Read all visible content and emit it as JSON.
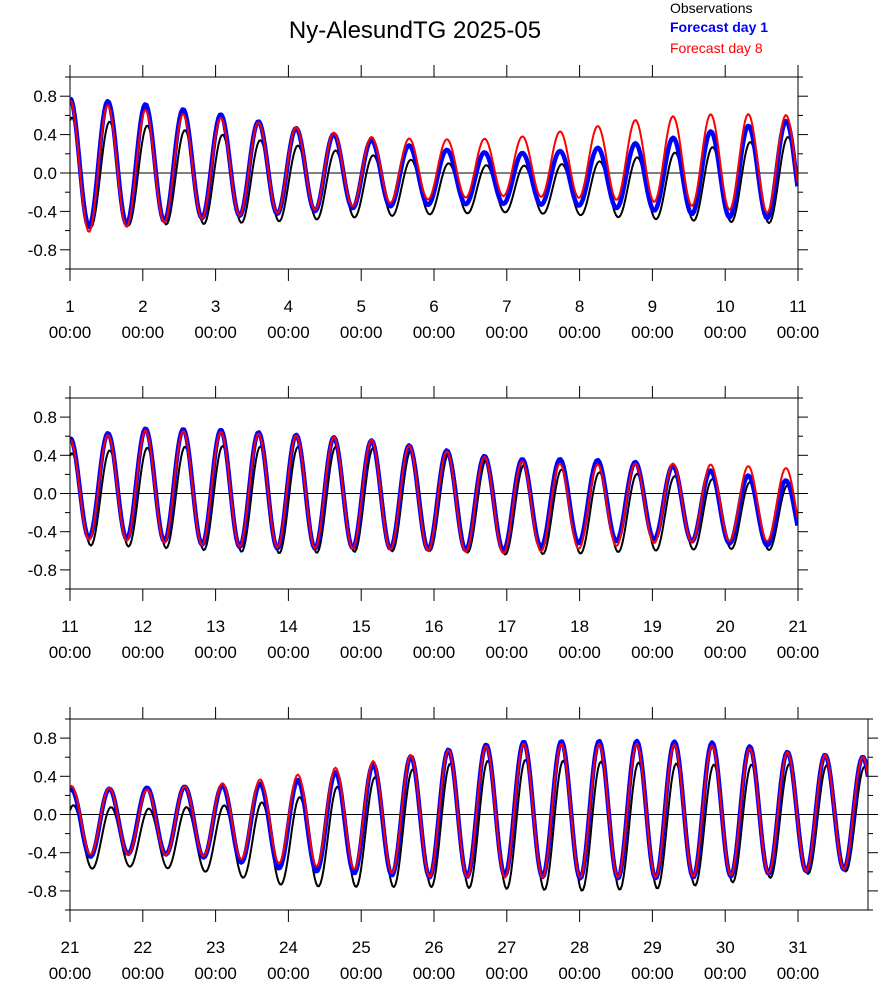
{
  "title": "Ny-AlesundTG 2025-05",
  "legend": {
    "observations": "Observations",
    "forecast_day_1": "Forecast day 1",
    "forecast_day_8": "Forecast day 8"
  },
  "colors": {
    "observations": "#000000",
    "forecast_day_1": "#0000ff",
    "forecast_day_8": "#ff0000"
  },
  "chart_data": [
    {
      "type": "line",
      "x_range_days": [
        1,
        11
      ],
      "ylim": [
        -1.0,
        1.0
      ],
      "yticks": [
        "0.8",
        "0.4",
        "0.0",
        "-0.4",
        "-0.8"
      ],
      "xticks": [
        {
          "day": "1",
          "time": "00:00"
        },
        {
          "day": "2",
          "time": "00:00"
        },
        {
          "day": "3",
          "time": "00:00"
        },
        {
          "day": "4",
          "time": "00:00"
        },
        {
          "day": "5",
          "time": "00:00"
        },
        {
          "day": "6",
          "time": "00:00"
        },
        {
          "day": "7",
          "time": "00:00"
        },
        {
          "day": "8",
          "time": "00:00"
        },
        {
          "day": "9",
          "time": "00:00"
        },
        {
          "day": "10",
          "time": "00:00"
        },
        {
          "day": "11",
          "time": "00:00"
        }
      ],
      "series": [
        {
          "name": "Observations",
          "amplitude": [
            0.58,
            0.52,
            0.47,
            0.4,
            0.33,
            0.27,
            0.24,
            0.27,
            0.33,
            0.4,
            0.46
          ],
          "mean": [
            0.0,
            -0.02,
            -0.06,
            -0.1,
            -0.13,
            -0.16,
            -0.17,
            -0.17,
            -0.15,
            -0.11,
            -0.07
          ]
        },
        {
          "name": "Forecast day 1",
          "amplitude": [
            0.68,
            0.62,
            0.54,
            0.45,
            0.36,
            0.29,
            0.26,
            0.29,
            0.36,
            0.46,
            0.52
          ],
          "mean": [
            0.1,
            0.1,
            0.08,
            0.03,
            0.0,
            -0.04,
            -0.06,
            -0.05,
            -0.03,
            0.0,
            0.04
          ]
        },
        {
          "name": "Forecast day 8",
          "amplitude": [
            0.7,
            0.6,
            0.52,
            0.45,
            0.36,
            0.31,
            0.3,
            0.36,
            0.44,
            0.5,
            0.52
          ],
          "mean": [
            0.06,
            0.06,
            0.06,
            0.04,
            0.02,
            0.04,
            0.06,
            0.1,
            0.14,
            0.12,
            0.08
          ]
        }
      ]
    },
    {
      "type": "line",
      "x_range_days": [
        11,
        21
      ],
      "ylim": [
        -1.0,
        1.0
      ],
      "yticks": [
        "0.8",
        "0.4",
        "0.0",
        "-0.4",
        "-0.8"
      ],
      "xticks": [
        {
          "day": "11",
          "time": "00:00"
        },
        {
          "day": "12",
          "time": "00:00"
        },
        {
          "day": "13",
          "time": "00:00"
        },
        {
          "day": "14",
          "time": "00:00"
        },
        {
          "day": "15",
          "time": "00:00"
        },
        {
          "day": "16",
          "time": "00:00"
        },
        {
          "day": "17",
          "time": "00:00"
        },
        {
          "day": "18",
          "time": "00:00"
        },
        {
          "day": "19",
          "time": "00:00"
        },
        {
          "day": "20",
          "time": "00:00"
        },
        {
          "day": "21",
          "time": "00:00"
        }
      ],
      "series": [
        {
          "name": "Observations",
          "amplitude": [
            0.48,
            0.52,
            0.55,
            0.56,
            0.55,
            0.52,
            0.48,
            0.43,
            0.4,
            0.36,
            0.34
          ],
          "mean": [
            -0.06,
            -0.04,
            -0.05,
            -0.07,
            -0.06,
            -0.08,
            -0.16,
            -0.2,
            -0.2,
            -0.22,
            -0.26
          ]
        },
        {
          "name": "Forecast day 1",
          "amplitude": [
            0.52,
            0.58,
            0.61,
            0.6,
            0.57,
            0.53,
            0.48,
            0.44,
            0.4,
            0.37,
            0.34
          ],
          "mean": [
            0.06,
            0.1,
            0.06,
            0.02,
            0.0,
            -0.06,
            -0.12,
            -0.08,
            -0.08,
            -0.15,
            -0.22
          ]
        },
        {
          "name": "Forecast day 8",
          "amplitude": [
            0.52,
            0.58,
            0.6,
            0.59,
            0.58,
            0.53,
            0.49,
            0.44,
            0.42,
            0.4,
            0.38
          ],
          "mean": [
            0.04,
            0.08,
            0.05,
            0.02,
            0.0,
            -0.07,
            -0.14,
            -0.14,
            -0.1,
            -0.1,
            -0.12
          ]
        }
      ]
    },
    {
      "type": "line",
      "x_range_days": [
        21,
        32
      ],
      "ylim": [
        -1.0,
        1.0
      ],
      "yticks": [
        "0.8",
        "0.4",
        "0.0",
        "-0.4",
        "-0.8"
      ],
      "xticks": [
        {
          "day": "21",
          "time": "00:00"
        },
        {
          "day": "22",
          "time": "00:00"
        },
        {
          "day": "23",
          "time": "00:00"
        },
        {
          "day": "24",
          "time": "00:00"
        },
        {
          "day": "25",
          "time": "00:00"
        },
        {
          "day": "26",
          "time": "00:00"
        },
        {
          "day": "27",
          "time": "00:00"
        },
        {
          "day": "28",
          "time": "00:00"
        },
        {
          "day": "29",
          "time": "00:00"
        },
        {
          "day": "30",
          "time": "00:00"
        },
        {
          "day": "31",
          "time": "00:00"
        }
      ],
      "series": [
        {
          "name": "Observations",
          "amplitude": [
            0.34,
            0.3,
            0.35,
            0.45,
            0.56,
            0.64,
            0.68,
            0.68,
            0.66,
            0.62,
            0.58,
            0.54
          ],
          "mean": [
            -0.24,
            -0.24,
            -0.26,
            -0.3,
            -0.2,
            -0.12,
            -0.1,
            -0.12,
            -0.12,
            -0.1,
            -0.05,
            -0.04
          ]
        },
        {
          "name": "Forecast day 1",
          "amplitude": [
            0.36,
            0.34,
            0.38,
            0.46,
            0.56,
            0.66,
            0.7,
            0.72,
            0.72,
            0.7,
            0.62,
            0.58
          ],
          "mean": [
            -0.1,
            -0.06,
            -0.08,
            -0.12,
            -0.06,
            0.0,
            0.06,
            0.05,
            0.05,
            0.05,
            0.02,
            0.02
          ]
        },
        {
          "name": "Forecast day 8",
          "amplitude": [
            0.36,
            0.34,
            0.38,
            0.46,
            0.56,
            0.66,
            0.7,
            0.7,
            0.7,
            0.68,
            0.62,
            0.58
          ],
          "mean": [
            -0.06,
            -0.08,
            -0.06,
            -0.06,
            -0.02,
            0.0,
            0.04,
            0.04,
            0.04,
            0.04,
            0.02,
            0.02
          ]
        }
      ]
    }
  ]
}
